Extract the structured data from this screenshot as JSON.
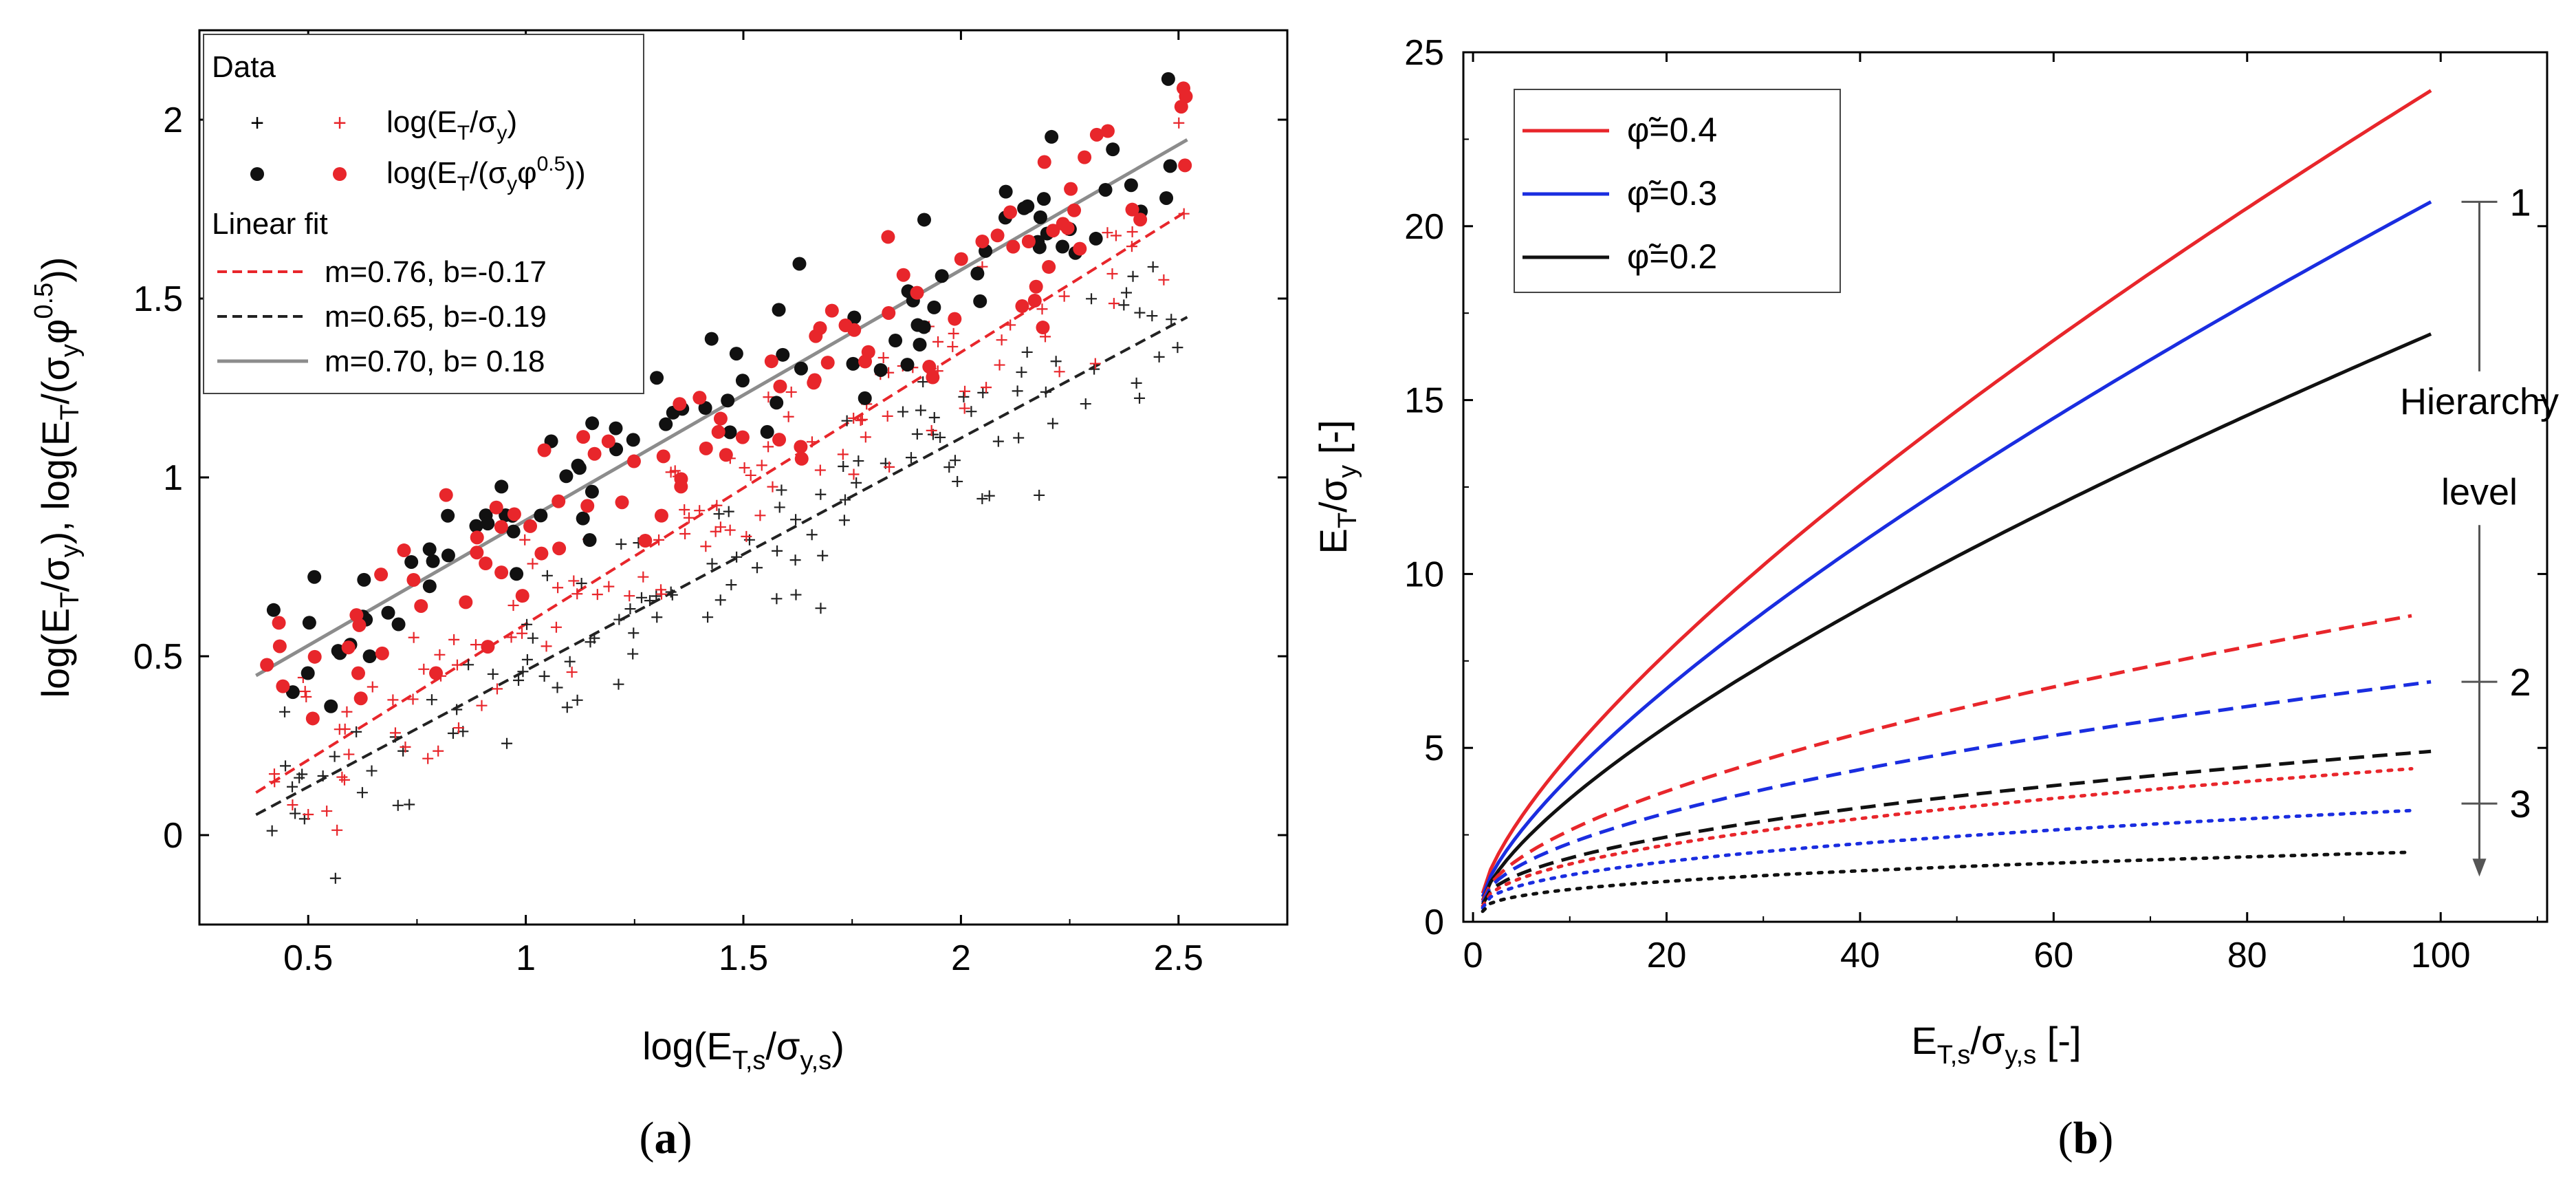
{
  "chart_data": [
    {
      "id": "a",
      "panel_label": "a",
      "type": "scatter",
      "xlabel": {
        "main": "log(E",
        "sub1": "T,s",
        "mid": "/σ",
        "sub2": "y,s",
        "end": ")"
      },
      "ylabel": "log(E_T/σ_y), log(E_T/(σ_y φ^0.5))",
      "xlim": [
        0.25,
        2.75
      ],
      "ylim": [
        -0.25,
        2.25
      ],
      "xticks": [
        0.5,
        1,
        1.5,
        2,
        2.5
      ],
      "xtick_labels": [
        "0.5",
        "1",
        "1.5",
        "2",
        "2.5"
      ],
      "yticks": [
        0,
        0.5,
        1,
        1.5,
        2
      ],
      "ytick_labels": [
        "0",
        "0.5",
        "1",
        "1.5",
        "2"
      ],
      "legend": {
        "position": "top-left",
        "data_heading": "Data",
        "fit_heading": "Linear fit",
        "entries": [
          {
            "label": "log(E_T/σ_y)"
          },
          {
            "label": "log(E_T/(σ_y φ^0.5))"
          },
          {
            "label": "m=0.76, b=-0.17"
          },
          {
            "label": "m=0.65, b=-0.19"
          },
          {
            "label": "m=0.70, b= 0.18"
          }
        ]
      },
      "fits": [
        {
          "name": "m=0.76, b=-0.17",
          "m": 0.76,
          "b": -0.17,
          "x_range": [
            0.38,
            2.52
          ],
          "color": "#e8262b",
          "style": "dashed"
        },
        {
          "name": "m=0.65, b=-0.19",
          "m": 0.65,
          "b": -0.19,
          "x_range": [
            0.38,
            2.52
          ],
          "color": "#222222",
          "style": "dashed"
        },
        {
          "name": "m=0.70, b= 0.18",
          "m": 0.7,
          "b": 0.18,
          "x_range": [
            0.38,
            2.52
          ],
          "color": "#8c8c8c",
          "style": "solid"
        }
      ],
      "scatter_series": [
        {
          "name": "black plus: log(E_T/σ_y)",
          "marker": "plus",
          "color": "#222222",
          "m": 0.65,
          "b": -0.19,
          "seed": 11,
          "n": 118,
          "spread": 0.11
        },
        {
          "name": "red plus: log(E_T/σ_y)",
          "marker": "plus",
          "color": "#e8262b",
          "m": 0.76,
          "b": -0.17,
          "seed": 23,
          "n": 118,
          "spread": 0.12
        },
        {
          "name": "black dot: log(E_T/(σ_y φ^0.5))",
          "marker": "dot",
          "color": "#111111",
          "m": 0.7,
          "b": 0.18,
          "seed": 37,
          "n": 95,
          "spread": 0.1
        },
        {
          "name": "red dot: log(E_T/(σ_y φ^0.5))",
          "marker": "dot",
          "color": "#e8262b",
          "m": 0.7,
          "b": 0.15,
          "seed": 53,
          "n": 100,
          "spread": 0.13
        }
      ],
      "colors": {
        "red": "#e8262b",
        "black": "#111111",
        "gray": "#8c8c8c"
      }
    },
    {
      "id": "b",
      "panel_label": "b",
      "type": "line",
      "xlabel": {
        "main": "E",
        "sub1": "T,s",
        "mid": "/σ",
        "sub2": "y,s",
        "end": " [-]"
      },
      "ylabel": {
        "main": "E",
        "sub1": "T",
        "mid": "/σ",
        "sub2": "y",
        "end": " [-]"
      },
      "xlim": [
        -1,
        111
      ],
      "ylim": [
        0,
        25
      ],
      "xticks": [
        0,
        20,
        40,
        60,
        80,
        100
      ],
      "xtick_labels": [
        "0",
        "20",
        "40",
        "60",
        "80",
        "100"
      ],
      "yticks": [
        0,
        5,
        10,
        15,
        20,
        25
      ],
      "ytick_labels": [
        "0",
        "5",
        "10",
        "15",
        "20",
        "25"
      ],
      "legend": {
        "position": "top-left",
        "entries": [
          {
            "label": "φ̃=0.4",
            "color": "#e8262b"
          },
          {
            "label": "φ̃=0.3",
            "color": "#1a2de0"
          },
          {
            "label": "φ̃=0.2",
            "color": "#111111"
          }
        ]
      },
      "series": [
        {
          "name": "φ̃=0.4 level 1",
          "color": "#e8262b",
          "style": "solid",
          "x_range": [
            1,
            99
          ],
          "y_start": 0.82,
          "y_end": 23.9,
          "exponent": 0.735
        },
        {
          "name": "φ̃=0.3 level 1",
          "color": "#1a2de0",
          "style": "solid",
          "x_range": [
            1,
            99
          ],
          "y_start": 0.72,
          "y_end": 20.7,
          "exponent": 0.735
        },
        {
          "name": "φ̃=0.2 level 1",
          "color": "#111111",
          "style": "solid",
          "x_range": [
            1,
            99
          ],
          "y_start": 0.62,
          "y_end": 16.9,
          "exponent": 0.72
        },
        {
          "name": "φ̃=0.4 level 2",
          "color": "#e8262b",
          "style": "dashed",
          "x_range": [
            1,
            97
          ],
          "y_start": 0.6,
          "y_end": 8.8,
          "exponent": 0.59
        },
        {
          "name": "φ̃=0.3 level 2",
          "color": "#1a2de0",
          "style": "dashed",
          "x_range": [
            1,
            99
          ],
          "y_start": 0.55,
          "y_end": 6.9,
          "exponent": 0.55
        },
        {
          "name": "φ̃=0.2 level 2",
          "color": "#111111",
          "style": "dashed",
          "x_range": [
            1,
            99
          ],
          "y_start": 0.5,
          "y_end": 4.9,
          "exponent": 0.5
        },
        {
          "name": "φ̃=0.4 level 3",
          "color": "#e8262b",
          "style": "dotted",
          "x_range": [
            1,
            97
          ],
          "y_start": 0.45,
          "y_end": 4.4,
          "exponent": 0.5
        },
        {
          "name": "φ̃=0.3 level 3",
          "color": "#1a2de0",
          "style": "dotted",
          "x_range": [
            1,
            97
          ],
          "y_start": 0.4,
          "y_end": 3.2,
          "exponent": 0.46
        },
        {
          "name": "φ̃=0.2 level 3",
          "color": "#111111",
          "style": "dotted",
          "x_range": [
            1,
            97
          ],
          "y_start": 0.3,
          "y_end": 2.0,
          "exponent": 0.42
        }
      ],
      "annotation": {
        "text_line1": "Hierarchy",
        "text_line2": "level",
        "arrow_x": 104,
        "arrow_y_top": 20.7,
        "arrow_y_bottom": 1.3,
        "level_marks": [
          {
            "label": "1",
            "y": 20.7
          },
          {
            "label": "2",
            "y": 6.9
          },
          {
            "label": "3",
            "y": 3.4
          }
        ]
      }
    }
  ]
}
